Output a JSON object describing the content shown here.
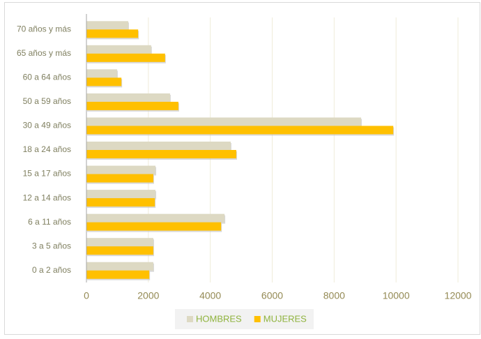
{
  "chart_data": {
    "type": "bar",
    "orientation": "horizontal",
    "categories": [
      "70 años y más",
      "65 años y más",
      "60 a 64 años",
      "50 a 59 años",
      "30 a 49 años",
      "18 a 24 años",
      "15 a 17 años",
      "12 a 14 años",
      "6 a 11 años",
      "3 a 5 años",
      "0 a 2 años"
    ],
    "series": [
      {
        "name": "HOMBRES",
        "color": "#ddd9c3",
        "values": [
          1350,
          2090,
          990,
          2700,
          8870,
          4660,
          2230,
          2230,
          4460,
          2160,
          2160
        ]
      },
      {
        "name": "MUJERES",
        "color": "#ffc000",
        "values": [
          1670,
          2540,
          1130,
          2970,
          9910,
          4840,
          2160,
          2210,
          4350,
          2160,
          2030
        ]
      }
    ],
    "xlim": [
      0,
      12000
    ],
    "xticks": [
      0,
      2000,
      4000,
      6000,
      8000,
      10000,
      12000
    ],
    "grid": true,
    "legend": "bottom"
  }
}
